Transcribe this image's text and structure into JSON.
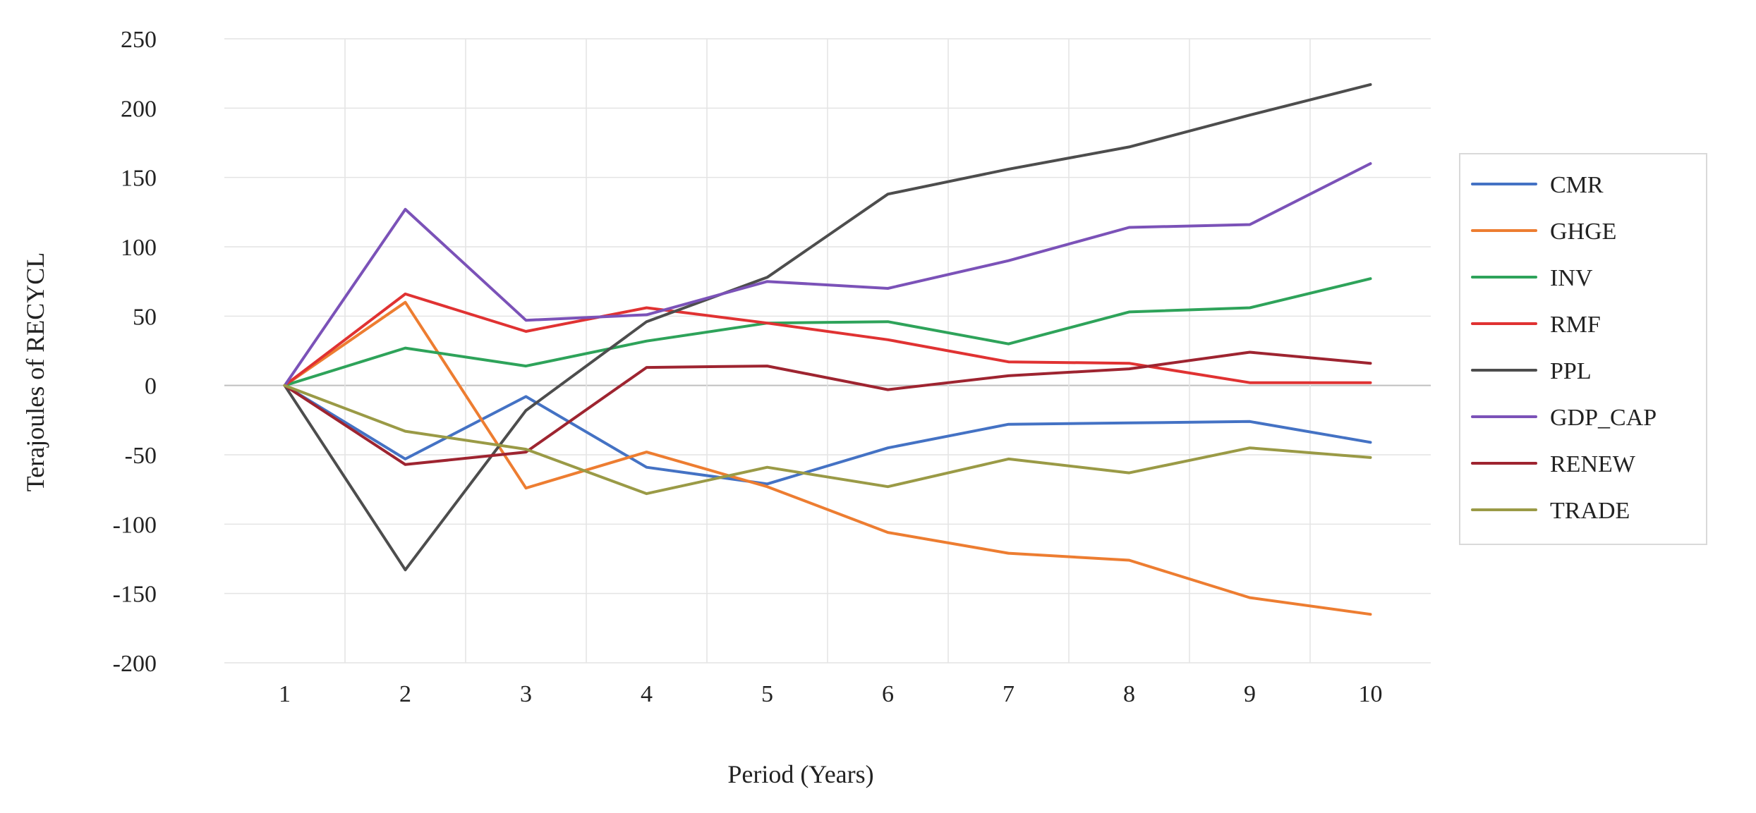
{
  "chart_data": {
    "type": "line",
    "title": "",
    "xlabel": "Period (Years)",
    "ylabel": "Terajoules of RECYCL",
    "categories": [
      "1",
      "2",
      "3",
      "4",
      "5",
      "6",
      "7",
      "8",
      "9",
      "10"
    ],
    "ylim": [
      -200,
      250
    ],
    "yticks": [
      250,
      200,
      150,
      100,
      50,
      0,
      -50,
      -100,
      -150,
      -200
    ],
    "ytick_labels": [
      "250",
      "200",
      "150",
      "100",
      "50",
      "0",
      "-50",
      "-100",
      "-150",
      "-200"
    ],
    "grid": true,
    "legend_position": "right",
    "series": [
      {
        "name": "CMR",
        "color": "#4472c4",
        "values": [
          0,
          -53,
          -8,
          -59,
          -71,
          -45,
          -28,
          -27,
          -26,
          -41
        ]
      },
      {
        "name": "GHGE",
        "color": "#ed7d31",
        "values": [
          0,
          60,
          -74,
          -48,
          -73,
          -106,
          -121,
          -126,
          -153,
          -165
        ]
      },
      {
        "name": "INV",
        "color": "#2ea35a",
        "values": [
          0,
          27,
          14,
          32,
          45,
          46,
          30,
          53,
          56,
          77
        ]
      },
      {
        "name": "RMF",
        "color": "#e03232",
        "values": [
          0,
          66,
          39,
          56,
          45,
          33,
          17,
          16,
          2,
          2
        ]
      },
      {
        "name": "PPL",
        "color": "#4d4d4d",
        "values": [
          0,
          -133,
          -18,
          46,
          78,
          138,
          156,
          172,
          195,
          217
        ]
      },
      {
        "name": "GDP_CAP",
        "color": "#7b52b8",
        "values": [
          0,
          127,
          47,
          51,
          75,
          70,
          90,
          114,
          116,
          160
        ]
      },
      {
        "name": "RENEW",
        "color": "#9e2430",
        "values": [
          0,
          -57,
          -48,
          13,
          14,
          -3,
          7,
          12,
          24,
          16
        ]
      },
      {
        "name": "TRADE",
        "color": "#9a9a46",
        "values": [
          0,
          -33,
          -46,
          -78,
          -59,
          -73,
          -53,
          -63,
          -45,
          -52
        ]
      }
    ]
  }
}
